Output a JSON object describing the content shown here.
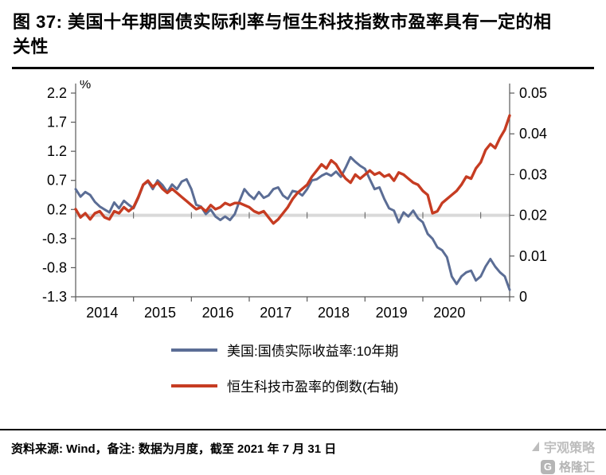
{
  "title": "图 37: 美国十年期国债实际利率与恒生科技指数市盈率具有一定的相关性",
  "chart_data": {
    "type": "line",
    "x_monthly_start": "2014-01",
    "x_monthly_end": "2021-07",
    "x_tick_labels": [
      "2014",
      "2015",
      "2016",
      "2017",
      "2018",
      "2019",
      "2020"
    ],
    "left_axis": {
      "unit": "%",
      "min": -1.3,
      "max": 2.2,
      "ticks": [
        "2.2",
        "1.7",
        "1.2",
        "0.7",
        "0.2",
        "-0.3",
        "-0.8",
        "-1.3"
      ]
    },
    "right_axis": {
      "min": 0,
      "max": 0.05,
      "ticks": [
        "0.05",
        "0.04",
        "0.03",
        "0.02",
        "0.01",
        "0"
      ]
    },
    "baseline_right_value": 0.02,
    "colors": {
      "baseline": "#d9d9d9",
      "axis": "#595959",
      "tick_text": "#000000"
    },
    "series": [
      {
        "name": "美国:国债实际收益率:10年期",
        "axis": "left",
        "color": "#5b6d95",
        "values": [
          0.55,
          0.42,
          0.5,
          0.45,
          0.33,
          0.25,
          0.2,
          0.15,
          0.32,
          0.22,
          0.35,
          0.28,
          0.22,
          0.4,
          0.62,
          0.68,
          0.55,
          0.7,
          0.62,
          0.5,
          0.63,
          0.55,
          0.68,
          0.72,
          0.55,
          0.28,
          0.25,
          0.12,
          0.2,
          0.08,
          0.02,
          0.08,
          0.02,
          0.12,
          0.35,
          0.55,
          0.45,
          0.38,
          0.5,
          0.4,
          0.44,
          0.55,
          0.58,
          0.44,
          0.38,
          0.52,
          0.5,
          0.44,
          0.55,
          0.7,
          0.72,
          0.78,
          0.82,
          0.78,
          0.85,
          0.76,
          0.92,
          1.1,
          1.02,
          0.95,
          0.9,
          0.72,
          0.55,
          0.58,
          0.38,
          0.22,
          0.18,
          -0.02,
          0.15,
          0.08,
          0.18,
          0.05,
          -0.02,
          -0.22,
          -0.3,
          -0.45,
          -0.5,
          -0.62,
          -0.95,
          -1.08,
          -0.95,
          -0.88,
          -0.85,
          -1.02,
          -0.95,
          -0.78,
          -0.65,
          -0.78,
          -0.88,
          -0.95,
          -1.18
        ]
      },
      {
        "name": "恒生科技市盈率的倒数(右轴)",
        "axis": "right",
        "color": "#c63c22",
        "values": [
          0.0215,
          0.0195,
          0.0205,
          0.019,
          0.0205,
          0.021,
          0.0195,
          0.019,
          0.021,
          0.0205,
          0.022,
          0.021,
          0.022,
          0.0245,
          0.0275,
          0.0285,
          0.027,
          0.028,
          0.0265,
          0.0255,
          0.0265,
          0.0255,
          0.0245,
          0.0235,
          0.0225,
          0.0215,
          0.022,
          0.021,
          0.0225,
          0.0215,
          0.022,
          0.023,
          0.0225,
          0.023,
          0.023,
          0.0225,
          0.022,
          0.021,
          0.0205,
          0.021,
          0.0195,
          0.018,
          0.019,
          0.0205,
          0.022,
          0.024,
          0.0255,
          0.0265,
          0.0275,
          0.0295,
          0.031,
          0.0325,
          0.0315,
          0.0335,
          0.0325,
          0.0305,
          0.029,
          0.028,
          0.03,
          0.029,
          0.03,
          0.031,
          0.03,
          0.0305,
          0.0295,
          0.03,
          0.0285,
          0.0305,
          0.03,
          0.029,
          0.028,
          0.0275,
          0.026,
          0.025,
          0.0205,
          0.021,
          0.023,
          0.024,
          0.025,
          0.026,
          0.0275,
          0.0295,
          0.029,
          0.0315,
          0.033,
          0.036,
          0.0375,
          0.0365,
          0.039,
          0.041,
          0.0445
        ]
      }
    ]
  },
  "footer": {
    "source": "资料来源: Wind，备注: 数据为月度，截至 2021 年 7 月 31 日"
  },
  "watermark": {
    "brand": "宇观策略",
    "logo_letter": "G",
    "logo_text": "格隆汇"
  }
}
